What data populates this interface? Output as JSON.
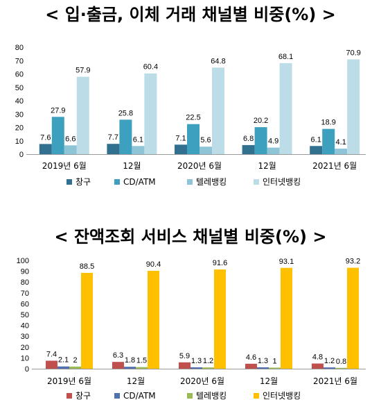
{
  "titles": {
    "chart1": "< 입·출금, 이체 거래 채널별 비중(%) >",
    "chart2": "< 잔액조회 서비스 채널별 비중(%) >"
  },
  "chart_data": [
    {
      "type": "bar",
      "title": "< 입·출금, 이체 거래 채널별 비중(%) >",
      "categories": [
        "2019년 6월",
        "12월",
        "2020년 6월",
        "12월",
        "2021년 6월"
      ],
      "series": [
        {
          "name": "창구",
          "color": "#31708f",
          "values": [
            7.6,
            7.7,
            7.1,
            6.8,
            6.1
          ]
        },
        {
          "name": "CD/ATM",
          "color": "#3ea0bf",
          "values": [
            27.9,
            25.8,
            22.5,
            20.2,
            18.9
          ]
        },
        {
          "name": "텔레뱅킹",
          "color": "#8ec5d6",
          "values": [
            6.6,
            6.1,
            5.6,
            4.9,
            4.1
          ]
        },
        {
          "name": "인터넷뱅킹",
          "color": "#bcdde8",
          "values": [
            57.9,
            60.4,
            64.8,
            68.1,
            70.9
          ]
        }
      ],
      "ylim": [
        0,
        80
      ],
      "yticks": [
        0,
        10,
        20,
        30,
        40,
        50,
        60,
        70,
        80
      ],
      "grid": false,
      "legend": "bottom"
    },
    {
      "type": "bar",
      "title": "< 잔액조회 서비스 채널별 비중(%) >",
      "categories": [
        "2019년 6월",
        "12월",
        "2020년 6월",
        "12월",
        "2021년 6월"
      ],
      "series": [
        {
          "name": "창구",
          "color": "#c0504d",
          "values": [
            7.4,
            6.3,
            5.9,
            4.6,
            4.8
          ]
        },
        {
          "name": "CD/ATM",
          "color": "#4f6fae",
          "values": [
            2.1,
            1.8,
            1.3,
            1.3,
            1.2
          ]
        },
        {
          "name": "텔레뱅킹",
          "color": "#9bbb59",
          "values": [
            2,
            1.5,
            1.2,
            1,
            0.8
          ]
        },
        {
          "name": "인터넷뱅킹",
          "color": "#ffc000",
          "values": [
            88.5,
            90.4,
            91.6,
            93.1,
            93.2
          ]
        }
      ],
      "ylim": [
        0,
        100
      ],
      "yticks": [
        0,
        10,
        20,
        30,
        40,
        50,
        60,
        70,
        80,
        90,
        100
      ],
      "grid": false,
      "legend": "bottom"
    }
  ]
}
